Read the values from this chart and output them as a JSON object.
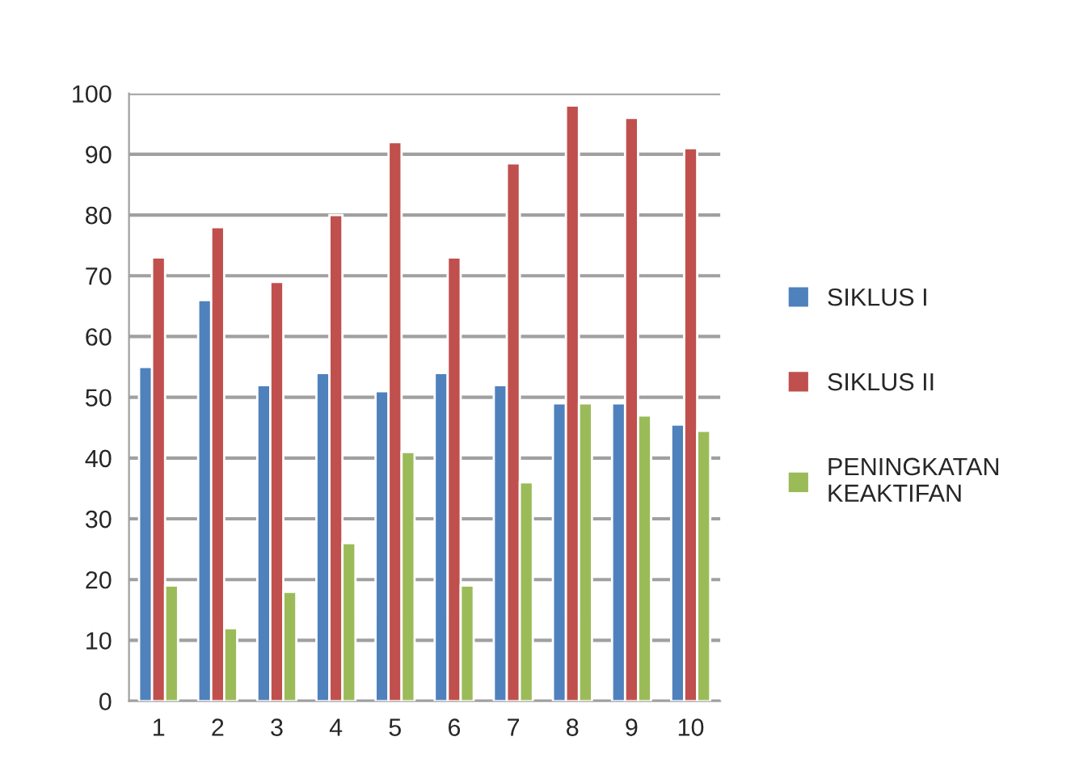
{
  "chart_data": {
    "type": "bar",
    "categories": [
      "1",
      "2",
      "3",
      "4",
      "5",
      "6",
      "7",
      "8",
      "9",
      "10"
    ],
    "series": [
      {
        "name": "SIKLUS I",
        "color": "#4f81bd",
        "values": [
          55,
          66,
          52,
          54,
          51,
          54,
          52,
          49,
          49,
          45.5
        ]
      },
      {
        "name": "SIKLUS II",
        "color": "#c0504d",
        "values": [
          73,
          78,
          69,
          80,
          92,
          73,
          88.5,
          98,
          96,
          91
        ]
      },
      {
        "name": "PENINGKATAN\nKEAKTIFAN",
        "color": "#9bbb59",
        "values": [
          19,
          12,
          18,
          26,
          41,
          19,
          36,
          49,
          47,
          44.5
        ]
      }
    ],
    "ylim": [
      0,
      100
    ],
    "yticks": [
      0,
      10,
      20,
      30,
      40,
      50,
      60,
      70,
      80,
      90,
      100
    ],
    "grid": "y",
    "legend": "right"
  }
}
